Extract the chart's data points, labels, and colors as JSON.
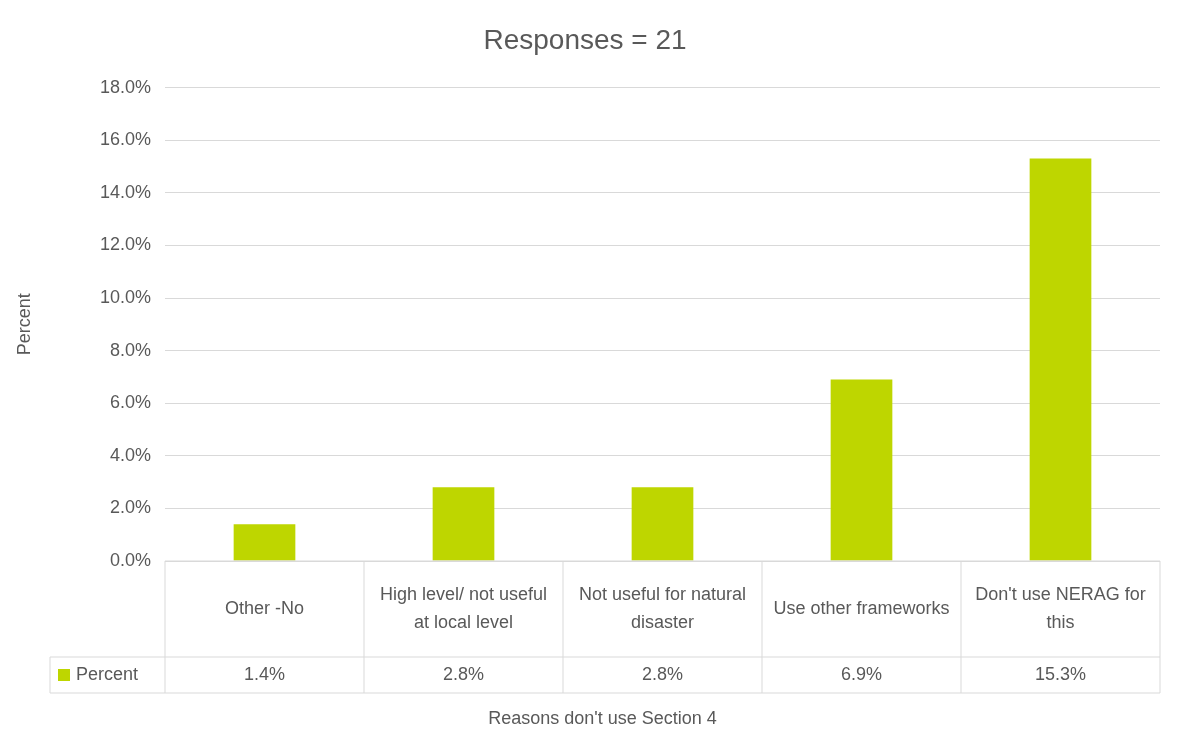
{
  "chart_data": {
    "type": "bar",
    "title": "Responses = 21",
    "xlabel": "Reasons don't use Section 4",
    "ylabel": "Percent",
    "categories": [
      "Other -No",
      "High level/ not useful at local level",
      "Not useful for natural disaster",
      "Use other frameworks",
      "Don't use NERAG for this"
    ],
    "series": [
      {
        "name": "Percent",
        "color": "#bed600",
        "values": [
          1.4,
          2.8,
          2.8,
          6.9,
          15.3
        ],
        "value_labels": [
          "1.4%",
          "2.8%",
          "2.8%",
          "6.9%",
          "15.3%"
        ]
      }
    ],
    "ylim": [
      0,
      18
    ],
    "yticks": [
      {
        "value": 0,
        "label": "0.0%"
      },
      {
        "value": 2,
        "label": "2.0%"
      },
      {
        "value": 4,
        "label": "4.0%"
      },
      {
        "value": 6,
        "label": "6.0%"
      },
      {
        "value": 8,
        "label": "8.0%"
      },
      {
        "value": 10,
        "label": "10.0%"
      },
      {
        "value": 12,
        "label": "12.0%"
      },
      {
        "value": 14,
        "label": "14.0%"
      },
      {
        "value": 16,
        "label": "16.0%"
      },
      {
        "value": 18,
        "label": "18.0%"
      }
    ],
    "grid": "y",
    "legend": "bottom"
  }
}
